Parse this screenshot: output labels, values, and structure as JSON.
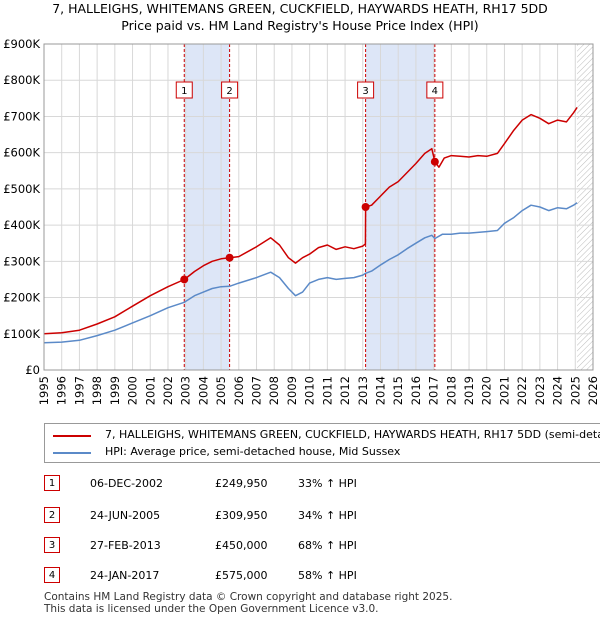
{
  "header": {
    "title_line1": "7, HALLEIGHS, WHITEMANS GREEN, CUCKFIELD, HAYWARDS HEATH, RH17 5DD",
    "title_line2": "Price paid vs. HM Land Registry's House Price Index (HPI)"
  },
  "colors": {
    "property": "#cc0000",
    "hpi": "#5b8ac8",
    "shade": "#dde6f7",
    "grid": "#d8d8d8"
  },
  "chart_data": {
    "type": "line",
    "title": "Price paid vs. HM Land Registry's House Price Index (HPI)",
    "xlabel": "",
    "ylabel": "",
    "xlim": [
      1995,
      2026
    ],
    "ylim": [
      0,
      900000
    ],
    "y_ticks": [
      {
        "value": 0,
        "label": "£0"
      },
      {
        "value": 100000,
        "label": "£100K"
      },
      {
        "value": 200000,
        "label": "£200K"
      },
      {
        "value": 300000,
        "label": "£300K"
      },
      {
        "value": 400000,
        "label": "£400K"
      },
      {
        "value": 500000,
        "label": "£500K"
      },
      {
        "value": 600000,
        "label": "£600K"
      },
      {
        "value": 700000,
        "label": "£700K"
      },
      {
        "value": 800000,
        "label": "£800K"
      },
      {
        "value": 900000,
        "label": "£900K"
      }
    ],
    "x_ticks": [
      "1995",
      "1996",
      "1997",
      "1998",
      "1999",
      "2000",
      "2001",
      "2002",
      "2003",
      "2004",
      "2005",
      "2006",
      "2007",
      "2008",
      "2009",
      "2010",
      "2011",
      "2012",
      "2013",
      "2014",
      "2015",
      "2016",
      "2017",
      "2018",
      "2019",
      "2020",
      "2021",
      "2022",
      "2023",
      "2024",
      "2025",
      "2026"
    ],
    "shaded_ranges": [
      [
        2002.92,
        2005.48
      ],
      [
        2013.16,
        2017.07
      ]
    ],
    "future_start": 2025.1,
    "series": [
      {
        "name": "7, HALLEIGHS, WHITEMANS GREEN, CUCKFIELD, HAYWARDS HEATH, RH17 5DD (semi-detached house)",
        "color": "#cc0000",
        "x": [
          1995.0,
          1996.0,
          1997.0,
          1998.0,
          1999.0,
          2000.0,
          2001.0,
          2002.0,
          2002.92,
          2003.5,
          2004.0,
          2004.5,
          2005.0,
          2005.48,
          2006.0,
          2007.0,
          2007.8,
          2008.3,
          2008.8,
          2009.2,
          2009.6,
          2010.0,
          2010.5,
          2011.0,
          2011.5,
          2012.0,
          2012.5,
          2013.0,
          2013.15,
          2013.16,
          2013.5,
          2014.0,
          2014.5,
          2015.0,
          2015.5,
          2016.0,
          2016.5,
          2016.9,
          2017.07,
          2017.3,
          2017.6,
          2018.0,
          2018.5,
          2019.0,
          2019.5,
          2020.0,
          2020.6,
          2021.0,
          2021.5,
          2022.0,
          2022.5,
          2023.0,
          2023.5,
          2024.0,
          2024.5,
          2024.9,
          2025.1
        ],
        "y": [
          100000,
          103000,
          110000,
          127000,
          147000,
          176000,
          205000,
          230000,
          249950,
          272000,
          288000,
          300000,
          307000,
          309950,
          313000,
          340000,
          365000,
          345000,
          310000,
          295000,
          310000,
          320000,
          338000,
          345000,
          333000,
          340000,
          335000,
          342000,
          348000,
          450000,
          455000,
          480000,
          505000,
          520000,
          545000,
          570000,
          598000,
          611000,
          575000,
          560000,
          585000,
          592000,
          590000,
          588000,
          592000,
          590000,
          598000,
          625000,
          660000,
          690000,
          705000,
          695000,
          680000,
          690000,
          685000,
          710000,
          725000
        ]
      },
      {
        "name": "HPI: Average price, semi-detached house, Mid Sussex",
        "color": "#5b8ac8",
        "x": [
          1995.0,
          1996.0,
          1997.0,
          1998.0,
          1999.0,
          2000.0,
          2001.0,
          2002.0,
          2002.92,
          2003.5,
          2004.0,
          2004.5,
          2005.0,
          2005.48,
          2006.0,
          2007.0,
          2007.8,
          2008.3,
          2008.8,
          2009.2,
          2009.6,
          2010.0,
          2010.5,
          2011.0,
          2011.5,
          2012.0,
          2012.5,
          2013.0,
          2013.16,
          2013.5,
          2014.0,
          2014.5,
          2015.0,
          2015.5,
          2016.0,
          2016.5,
          2016.9,
          2017.07,
          2017.5,
          2018.0,
          2018.5,
          2019.0,
          2019.5,
          2020.0,
          2020.6,
          2021.0,
          2021.5,
          2022.0,
          2022.5,
          2023.0,
          2023.5,
          2024.0,
          2024.5,
          2024.9,
          2025.1
        ],
        "y": [
          75000,
          77000,
          82000,
          95000,
          110000,
          130000,
          150000,
          172000,
          187000,
          205000,
          215000,
          225000,
          230000,
          231000,
          240000,
          255000,
          270000,
          255000,
          225000,
          205000,
          215000,
          240000,
          250000,
          255000,
          250000,
          253000,
          255000,
          262000,
          267000,
          273000,
          290000,
          305000,
          318000,
          335000,
          350000,
          365000,
          372000,
          363000,
          375000,
          375000,
          378000,
          378000,
          380000,
          382000,
          385000,
          405000,
          420000,
          440000,
          455000,
          450000,
          440000,
          448000,
          445000,
          455000,
          462000
        ]
      }
    ],
    "sales": [
      {
        "label": "1",
        "x": 2002.92,
        "y": 249950
      },
      {
        "label": "2",
        "x": 2005.48,
        "y": 309950
      },
      {
        "label": "3",
        "x": 2013.16,
        "y": 450000
      },
      {
        "label": "4",
        "x": 2017.07,
        "y": 575000
      }
    ]
  },
  "legend": {
    "property_label": "7, HALLEIGHS, WHITEMANS GREEN, CUCKFIELD, HAYWARDS HEATH, RH17 5DD (semi-detached house)",
    "hpi_label": "HPI: Average price, semi-detached house, Mid Sussex"
  },
  "transactions": [
    {
      "num": "1",
      "date": "06-DEC-2002",
      "price": "£249,950",
      "hpi": "33% ↑ HPI"
    },
    {
      "num": "2",
      "date": "24-JUN-2005",
      "price": "£309,950",
      "hpi": "34% ↑ HPI"
    },
    {
      "num": "3",
      "date": "27-FEB-2013",
      "price": "£450,000",
      "hpi": "68% ↑ HPI"
    },
    {
      "num": "4",
      "date": "24-JAN-2017",
      "price": "£575,000",
      "hpi": "58% ↑ HPI"
    }
  ],
  "footer": {
    "line1": "Contains HM Land Registry data © Crown copyright and database right 2025.",
    "line2": "This data is licensed under the Open Government Licence v3.0."
  }
}
